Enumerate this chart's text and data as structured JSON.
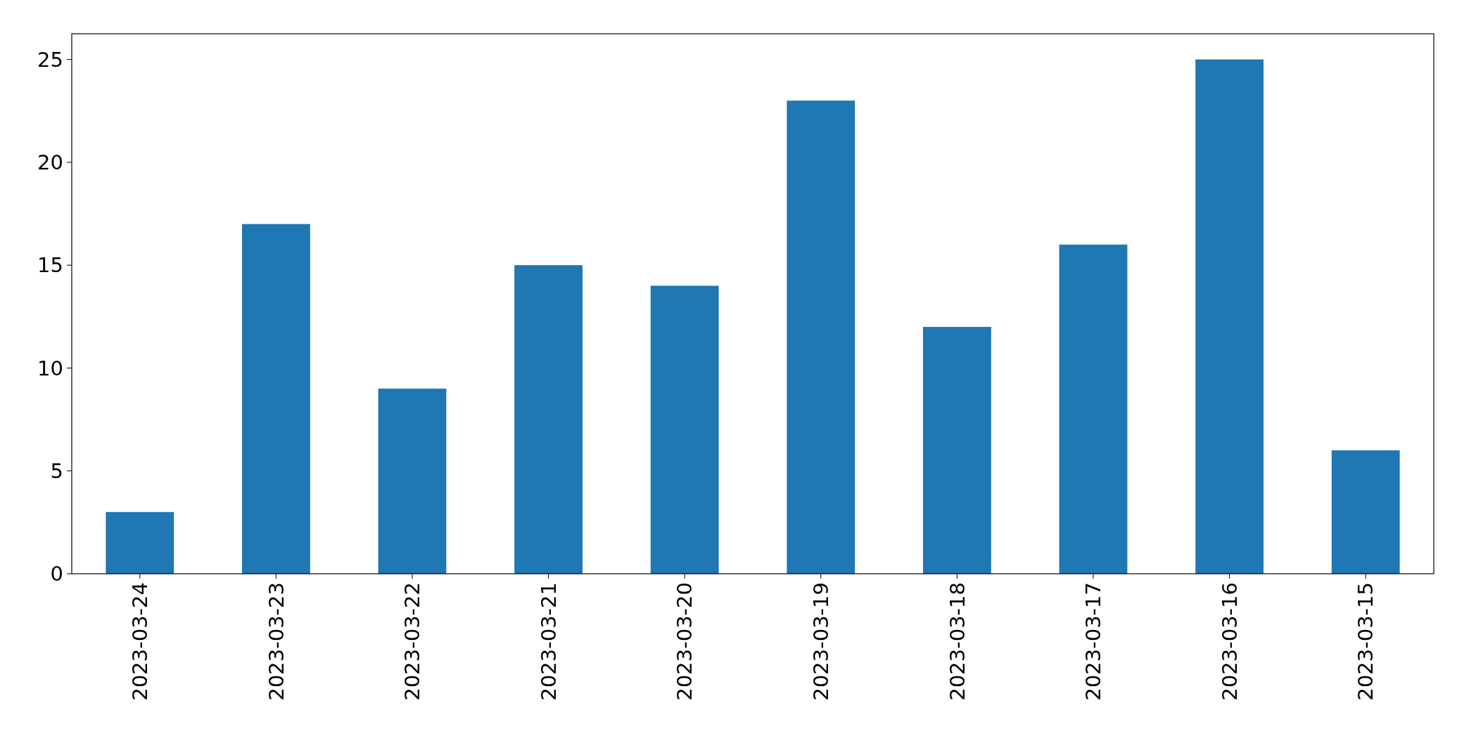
{
  "chart_data": {
    "type": "bar",
    "categories": [
      "2023-03-24",
      "2023-03-23",
      "2023-03-22",
      "2023-03-21",
      "2023-03-20",
      "2023-03-19",
      "2023-03-18",
      "2023-03-17",
      "2023-03-16",
      "2023-03-15"
    ],
    "values": [
      3,
      17,
      9,
      15,
      14,
      23,
      12,
      16,
      25,
      6
    ],
    "color": "#1f77b4",
    "ylim": [
      0,
      26.25
    ],
    "yticks": [
      0,
      5,
      10,
      15,
      20,
      25
    ]
  }
}
